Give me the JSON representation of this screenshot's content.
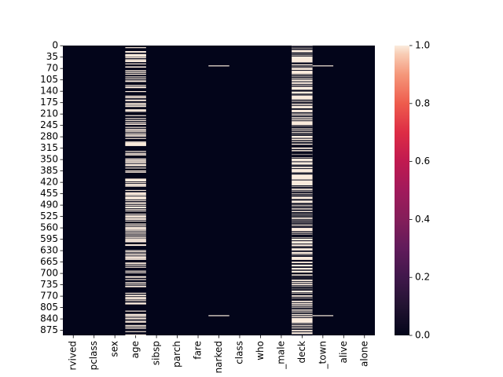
{
  "chart_data": {
    "type": "heatmap",
    "title": "",
    "xlabel": "",
    "ylabel": "",
    "n_rows": 891,
    "columns": [
      "survived",
      "pclass",
      "sex",
      "age",
      "sibsp",
      "parch",
      "fare",
      "embarked",
      "class",
      "who",
      "adult_male",
      "deck",
      "embark_town",
      "alive",
      "alone"
    ],
    "x_tick_labels": [
      "rvived",
      "pclass",
      "sex",
      "age",
      "sibsp",
      "parch",
      "fare",
      "narked",
      "class",
      "who",
      "_male",
      "deck",
      "_town",
      "alive",
      "alone"
    ],
    "y_tick_labels": [
      "0",
      "35",
      "70",
      "105",
      "140",
      "175",
      "210",
      "245",
      "280",
      "315",
      "350",
      "385",
      "420",
      "455",
      "490",
      "525",
      "560",
      "595",
      "630",
      "665",
      "700",
      "735",
      "770",
      "805",
      "840",
      "875"
    ],
    "y_ticks": [
      0,
      35,
      70,
      105,
      140,
      175,
      210,
      245,
      280,
      315,
      350,
      385,
      420,
      455,
      490,
      525,
      560,
      595,
      630,
      665,
      700,
      735,
      770,
      805,
      840,
      875
    ],
    "missing_rows": {
      "age": [
        5,
        17,
        19,
        26,
        28,
        29,
        31,
        32,
        36,
        42,
        45,
        46,
        47,
        48,
        55,
        64,
        65,
        76,
        77,
        82,
        87,
        95,
        101,
        107,
        109,
        121,
        126,
        128,
        140,
        154,
        158,
        159,
        166,
        168,
        176,
        180,
        181,
        185,
        186,
        196,
        198,
        201,
        214,
        223,
        229,
        235,
        240,
        241,
        250,
        256,
        260,
        264,
        270,
        274,
        277,
        284,
        295,
        298,
        300,
        301,
        303,
        304,
        306,
        324,
        330,
        334,
        335,
        347,
        351,
        354,
        358,
        359,
        364,
        367,
        368,
        375,
        384,
        388,
        409,
        410,
        411,
        413,
        415,
        420,
        425,
        428,
        431,
        444,
        451,
        454,
        457,
        459,
        464,
        466,
        468,
        470,
        475,
        481,
        485,
        490,
        495,
        497,
        502,
        507,
        517,
        522,
        524,
        527,
        531,
        533,
        538,
        547,
        552,
        557,
        560,
        563,
        564,
        568,
        573,
        578,
        584,
        589,
        593,
        596,
        598,
        601,
        602,
        611,
        612,
        613,
        629,
        633,
        639,
        643,
        648,
        650,
        653,
        656,
        667,
        669,
        674,
        680,
        692,
        697,
        709,
        711,
        718,
        727,
        732,
        738,
        739,
        740,
        760,
        766,
        768,
        773,
        776,
        778,
        783,
        790,
        792,
        793,
        815,
        825,
        826,
        828,
        832,
        837,
        839,
        846,
        849,
        859,
        863,
        868,
        878,
        888
      ],
      "embarked": [
        61,
        829
      ],
      "embark_town": [
        61,
        829
      ],
      "deck_present": [
        1,
        3,
        6,
        10,
        11,
        21,
        23,
        27,
        31,
        52,
        54,
        55,
        61,
        62,
        66,
        75,
        88,
        92,
        96,
        97,
        102,
        110,
        118,
        123,
        124,
        136,
        137,
        139,
        148,
        151,
        166,
        170,
        174,
        177,
        183,
        193,
        194,
        195,
        205,
        209,
        215,
        218,
        224,
        230,
        245,
        248,
        251,
        252,
        257,
        262,
        263,
        268,
        269,
        273,
        275,
        284,
        291,
        292,
        297,
        299,
        305,
        306,
        307,
        309,
        310,
        311,
        318,
        319,
        325,
        327,
        329,
        331,
        332,
        336,
        337,
        339,
        340,
        341,
        345,
        356,
        366,
        369,
        370,
        377,
        390,
        393,
        394,
        412,
        430,
        434,
        435,
        438,
        445,
        449,
        452,
        456,
        460,
        462,
        472,
        473,
        474,
        484,
        486,
        487,
        492,
        496,
        498,
        504,
        505,
        506,
        512,
        515,
        516,
        520,
        523,
        526,
        533,
        537,
        540,
        544,
        546,
        550,
        555,
        556,
        558,
        571,
        572,
        577,
        581,
        583,
        585,
        587,
        591,
        599,
        609,
        617,
        618,
        621,
        630,
        632,
        641,
        645,
        647,
        659,
        660,
        662,
        669,
        671,
        679,
        681,
        689,
        690,
        698,
        699,
        700,
        701,
        707,
        710,
        712,
        715,
        716,
        717,
        724,
        730,
        737,
        741,
        742,
        745,
        748,
        751,
        759,
        763,
        765,
        772,
        776,
        779,
        781,
        782,
        789,
        796,
        802,
        806,
        809,
        815,
        820,
        823,
        829,
        835,
        853,
        857,
        862,
        867,
        871,
        872,
        879,
        887,
        889
      ]
    },
    "colorbar": {
      "min": 0.0,
      "max": 1.0,
      "ticks": [
        0.0,
        0.2,
        0.4,
        0.6,
        0.8,
        1.0
      ],
      "tick_labels": [
        "0.0",
        "0.2",
        "0.4",
        "0.6",
        "0.8",
        "1.0"
      ],
      "colormap": "rocket",
      "low_color": "#03051a",
      "high_color": "#faebdd"
    }
  }
}
